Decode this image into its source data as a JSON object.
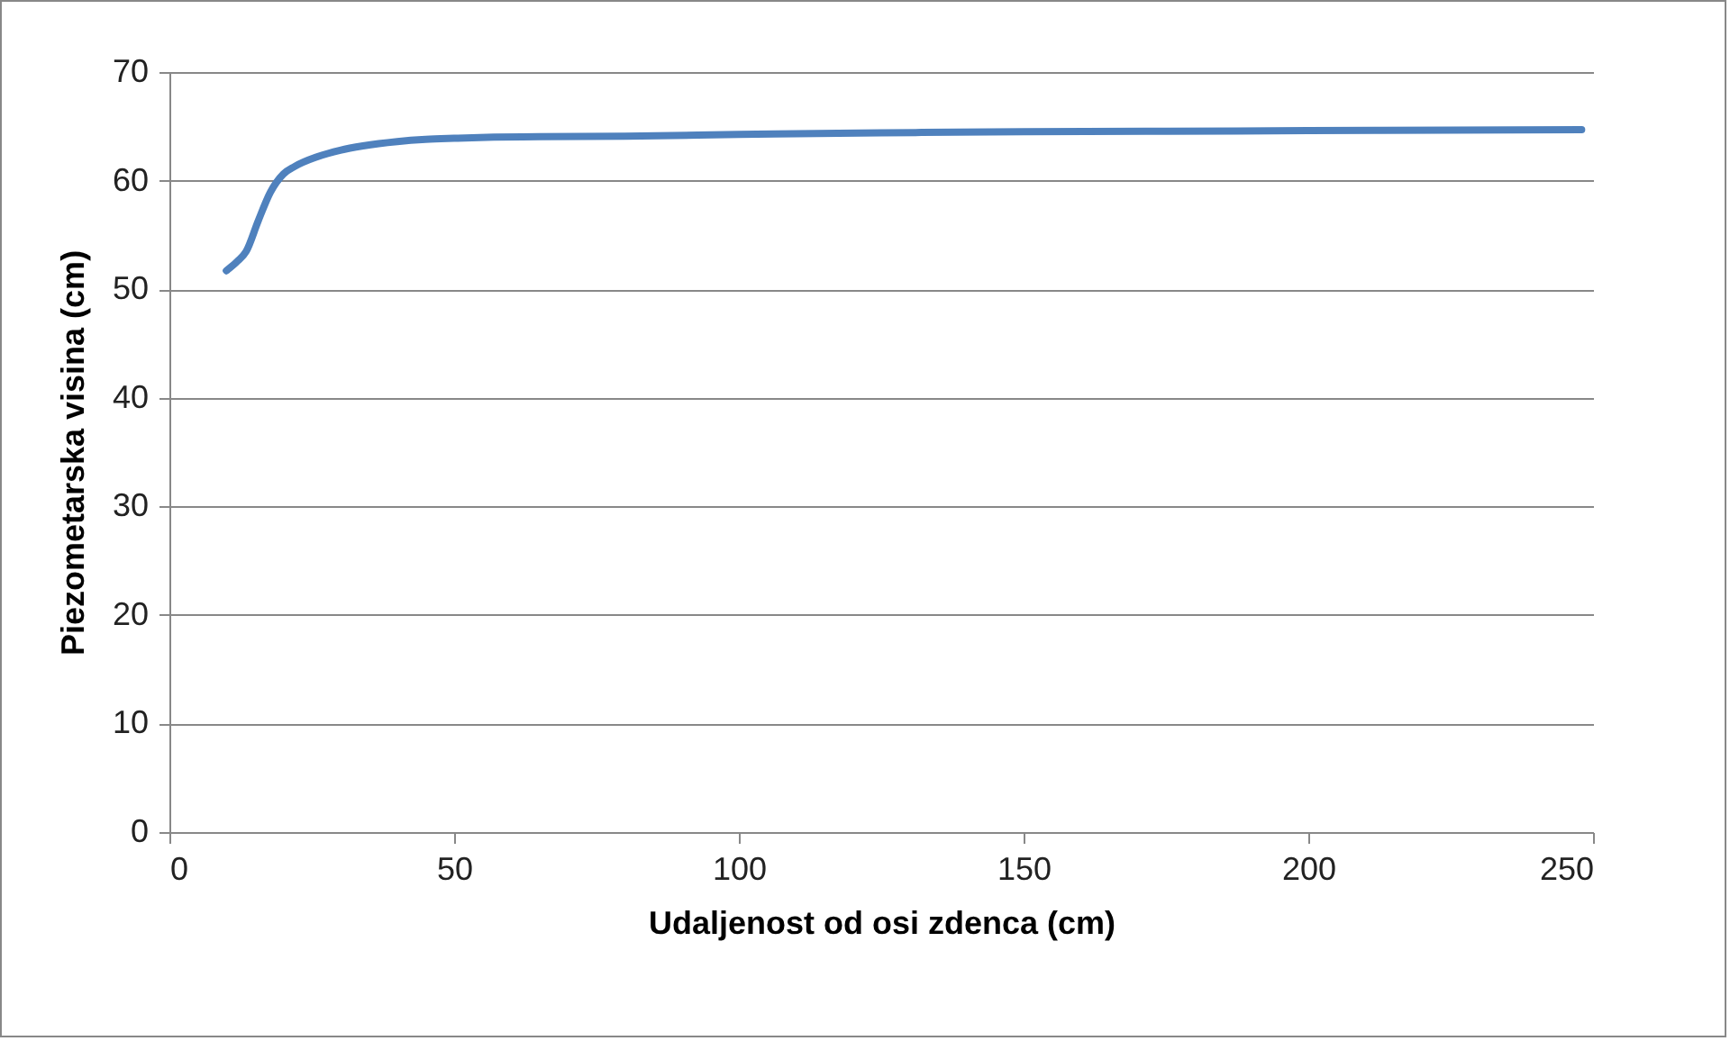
{
  "chart_data": {
    "type": "line",
    "xlabel": "Udaljenost od osi zdenca (cm)",
    "ylabel": "Piezometarska visina (cm)",
    "x": [
      10,
      12,
      13.5,
      15.6,
      17.7,
      20,
      22,
      26,
      30,
      34,
      40,
      45,
      50,
      57,
      65,
      80,
      100,
      125,
      150,
      175,
      200,
      225,
      248
    ],
    "series": [
      {
        "color": "#4f81bd",
        "values": [
          51.7,
          52.6,
          53.5,
          56.3,
          58.9,
          60.6,
          61.3,
          62.2,
          62.8,
          63.2,
          63.6,
          63.8,
          63.9,
          64.0,
          64.05,
          64.1,
          64.25,
          64.4,
          64.5,
          64.55,
          64.6,
          64.65,
          64.7
        ]
      }
    ],
    "xlim": [
      0,
      250
    ],
    "xticks": [
      0,
      50,
      100,
      150,
      200,
      250
    ],
    "ylim": [
      0,
      70
    ],
    "yticks": [
      0,
      10,
      20,
      30,
      40,
      50,
      60,
      70
    ],
    "grid": "y",
    "legend": false,
    "marker": "none",
    "line_style": "solid"
  }
}
